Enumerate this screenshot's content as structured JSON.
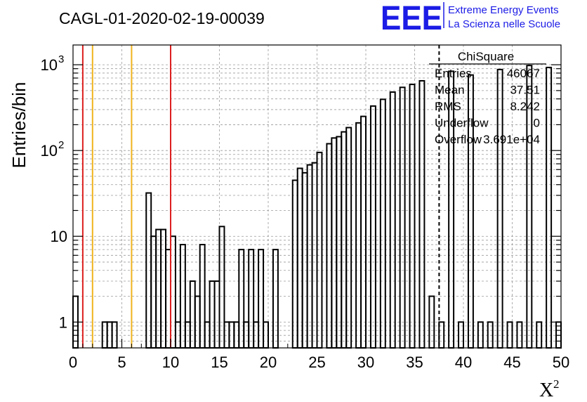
{
  "header": {
    "run_title": "CAGL-01-2020-02-19-00039",
    "logo_text": "EEE",
    "logo_line1": "Extreme Energy Events",
    "logo_line2": "La Scienza nelle Scuole"
  },
  "stats_box": {
    "name": "ChiSquare",
    "rows": [
      {
        "label": "Entries",
        "value": "46067"
      },
      {
        "label": "Mean",
        "value": "37.51"
      },
      {
        "label": "RMS",
        "value": "8.242"
      },
      {
        "label": "Underflow",
        "value": "0"
      },
      {
        "label": "Overflow",
        "value": "3.691e+04"
      }
    ]
  },
  "chart_data": {
    "type": "histogram",
    "title": "CAGL-01-2020-02-19-00039",
    "xlabel": "X",
    "xlabel_superscript": "2",
    "ylabel": "Entries/bin",
    "xlim": [
      0,
      50
    ],
    "ylim": [
      0.5,
      1700
    ],
    "yscale": "log",
    "grid": true,
    "bin_width": 0.5,
    "x_ticks": [
      "0",
      "5",
      "10",
      "15",
      "20",
      "25",
      "30",
      "35",
      "40",
      "45",
      "50"
    ],
    "y_ticks": [
      {
        "value": 1,
        "label": "1"
      },
      {
        "value": 10,
        "label": "10"
      },
      {
        "value": 100,
        "label": "10",
        "exp": "2"
      },
      {
        "value": 1000,
        "label": "10",
        "exp": "3"
      }
    ],
    "counts": [
      2,
      0,
      0,
      0,
      0,
      0,
      1,
      1,
      1,
      0,
      0,
      0,
      0,
      0,
      0,
      32,
      10,
      12,
      12,
      7,
      10,
      1,
      8,
      1,
      3,
      2,
      8,
      1,
      3,
      3,
      13,
      1,
      1,
      1,
      7,
      1,
      7,
      1,
      7,
      1,
      0,
      7,
      0,
      0,
      0,
      45,
      62,
      55,
      68,
      72,
      95,
      0,
      120,
      140,
      145,
      165,
      185,
      0,
      210,
      250,
      0,
      330,
      0,
      395,
      0,
      480,
      0,
      545,
      0,
      590,
      0,
      650,
      0,
      2,
      0,
      1,
      0,
      840,
      0,
      1,
      0,
      760,
      0,
      1,
      0,
      1,
      0,
      880,
      0,
      1,
      0,
      1,
      0,
      980,
      0,
      1,
      0,
      930,
      0,
      1
    ],
    "vertical_lines": [
      {
        "x": 1,
        "color": "#dd1f1f"
      },
      {
        "x": 2,
        "color": "#f0b41e"
      },
      {
        "x": 6,
        "color": "#f0b41e"
      },
      {
        "x": 10,
        "color": "#dd1f1f"
      },
      {
        "x": 37.51,
        "color": "#000000",
        "dashed": true
      }
    ]
  }
}
